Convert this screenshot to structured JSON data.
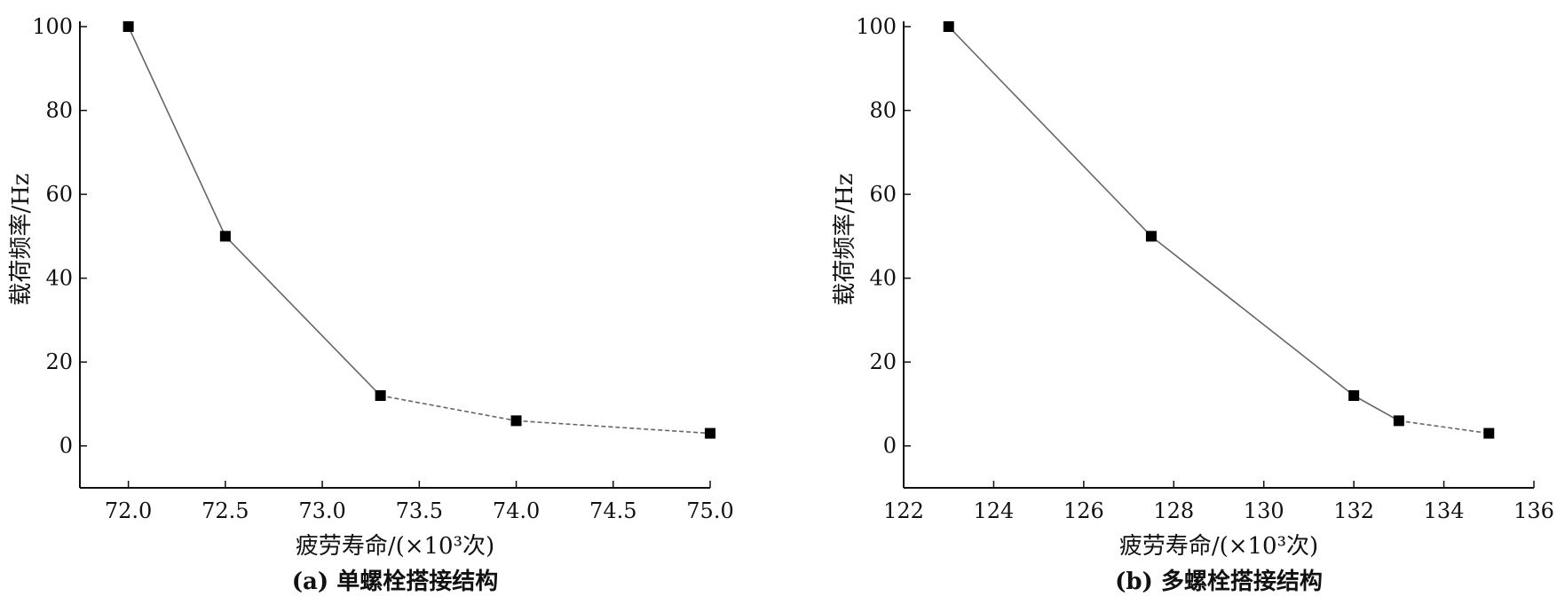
{
  "chart_data": [
    {
      "type": "line",
      "caption": "(a) 单螺栓搭接结构",
      "xlabel": "疲劳寿命/(×10³次)",
      "ylabel": "载荷频率/Hz",
      "xlim": [
        71.75,
        75.0
      ],
      "ylim": [
        -10,
        100
      ],
      "xticks": [
        "72.0",
        "72.5",
        "73.0",
        "73.5",
        "74.0",
        "74.5",
        "75.0"
      ],
      "yticks": [
        "0",
        "20",
        "40",
        "60",
        "80",
        "100"
      ],
      "grid": false,
      "series": [
        {
          "x": [
            72.0,
            72.5,
            73.3,
            74.0,
            75.0
          ],
          "y": [
            100,
            50,
            12,
            6,
            3
          ]
        }
      ]
    },
    {
      "type": "line",
      "caption": "(b) 多螺栓搭接结构",
      "xlabel": "疲劳寿命/(×10³次)",
      "ylabel": "载荷频率/Hz",
      "xlim": [
        122,
        136
      ],
      "ylim": [
        -10,
        100
      ],
      "xticks": [
        "122",
        "124",
        "126",
        "128",
        "130",
        "132",
        "134",
        "136"
      ],
      "yticks": [
        "0",
        "20",
        "40",
        "60",
        "80",
        "100"
      ],
      "grid": false,
      "series": [
        {
          "x": [
            123,
            127.5,
            132,
            133,
            135
          ],
          "y": [
            100,
            50,
            12,
            6,
            3
          ]
        }
      ]
    }
  ]
}
